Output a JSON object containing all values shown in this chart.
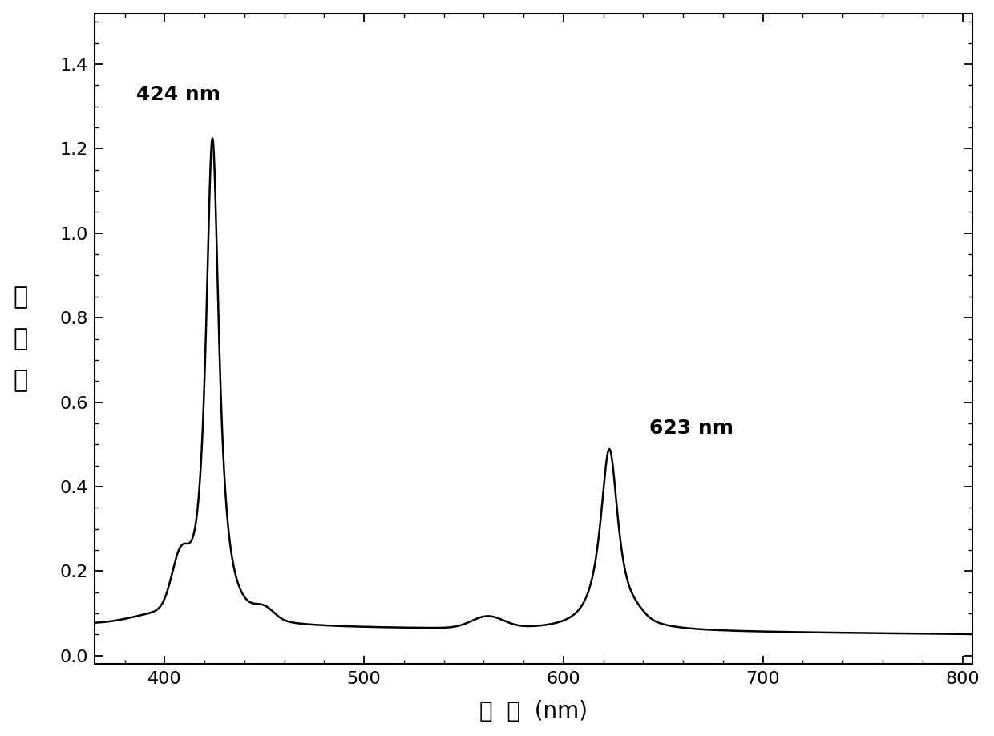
{
  "xlabel_parts": [
    "波　长　（nm）"
  ],
  "ylabel_chars": [
    "吸",
    "光",
    "度"
  ],
  "xlim": [
    365,
    805
  ],
  "ylim": [
    -0.02,
    1.52
  ],
  "xticks": [
    400,
    500,
    600,
    700,
    800
  ],
  "yticks": [
    0.0,
    0.2,
    0.4,
    0.6,
    0.8,
    1.0,
    1.2,
    1.4
  ],
  "line_color": "#000000",
  "line_width": 1.8,
  "background_color": "#ffffff",
  "annotation_424": "424 nm",
  "annotation_623": "623 nm",
  "ann_fontsize": 18,
  "tick_fontsize": 16,
  "label_fontsize": 20
}
